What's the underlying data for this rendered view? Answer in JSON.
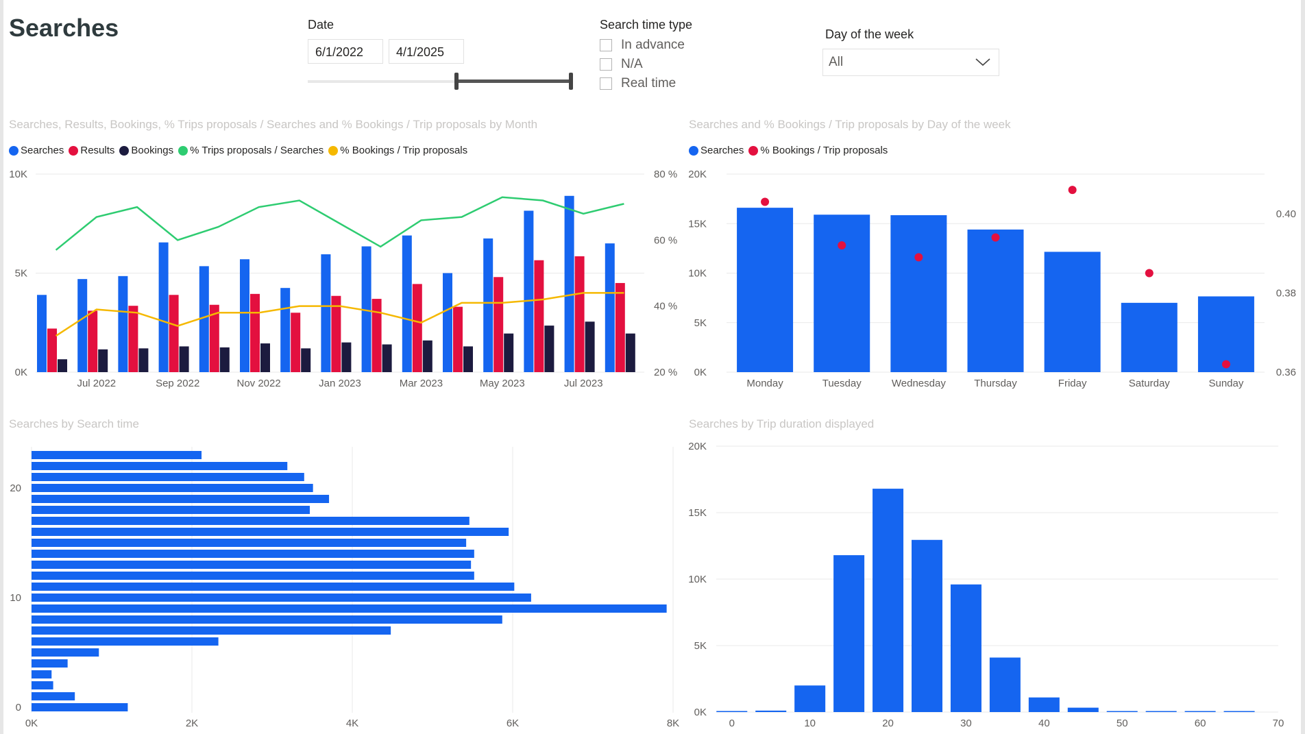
{
  "page": {
    "title": "Searches"
  },
  "colors": {
    "searches": "#1565f0",
    "results": "#e3103f",
    "bookings": "#1c1b3f",
    "trips_pct": "#2ecc71",
    "bookings_pct": "#f5b800",
    "grid": "#e9e9e9",
    "axis_text": "#605e5c"
  },
  "filters": {
    "date": {
      "label": "Date",
      "start": "6/1/2022",
      "end": "4/1/2025"
    },
    "search_time_type": {
      "label": "Search time type",
      "options": [
        {
          "label": "In advance",
          "checked": false
        },
        {
          "label": "N/A",
          "checked": false
        },
        {
          "label": "Real time",
          "checked": false
        }
      ]
    },
    "day_of_week": {
      "label": "Day of the week",
      "value": "All",
      "icon": "chevron-down-icon"
    }
  },
  "chart_data": [
    {
      "id": "monthly",
      "type": "bar",
      "title": "Searches, Results, Bookings, % Trips proposals / Searches and % Bookings / Trip proposals by Month",
      "legend": [
        "Searches",
        "Results",
        "Bookings",
        "% Trips proposals / Searches",
        "% Bookings / Trip proposals"
      ],
      "y_ticks": [
        "0K",
        "5K",
        "10K"
      ],
      "y2_ticks": [
        "20 %",
        "40 %",
        "60 %",
        "80 %"
      ],
      "ylim": [
        0,
        10000
      ],
      "y2lim": [
        20,
        80
      ],
      "x_labels": [
        "Jul 2022",
        "Sep 2022",
        "Nov 2022",
        "Jan 2023",
        "Mar 2023",
        "May 2023",
        "Jul 2023"
      ],
      "x_label_index": [
        1,
        3,
        5,
        7,
        9,
        11,
        13
      ],
      "categories": [
        "Jun 2022",
        "Jul 2022",
        "Aug 2022",
        "Sep 2022",
        "Oct 2022",
        "Nov 2022",
        "Dec 2022",
        "Jan 2023",
        "Feb 2023",
        "Mar 2023",
        "Apr 2023",
        "May 2023",
        "Jun 2023",
        "Jul 2023",
        "Aug 2023"
      ],
      "series": [
        {
          "name": "Searches",
          "kind": "bar",
          "axis": "y",
          "values": [
            3900,
            4700,
            4850,
            6550,
            5350,
            5700,
            4250,
            5950,
            6350,
            6900,
            5000,
            6750,
            8150,
            8900,
            6500
          ]
        },
        {
          "name": "Results",
          "kind": "bar",
          "axis": "y",
          "values": [
            2200,
            3100,
            3350,
            3900,
            3400,
            3950,
            3000,
            3850,
            3700,
            4450,
            3300,
            4800,
            5650,
            5850,
            4500
          ]
        },
        {
          "name": "Bookings",
          "kind": "bar",
          "axis": "y",
          "values": [
            650,
            1150,
            1200,
            1300,
            1250,
            1450,
            1200,
            1500,
            1400,
            1600,
            1300,
            1950,
            2350,
            2550,
            1950
          ]
        },
        {
          "name": "% Trips proposals / Searches",
          "kind": "line",
          "axis": "y2",
          "values": [
            57,
            67,
            70,
            60,
            64,
            70,
            72,
            65,
            58,
            66,
            67,
            73,
            72,
            68,
            71
          ]
        },
        {
          "name": "% Bookings / Trip proposals",
          "kind": "line",
          "axis": "y2",
          "values": [
            31,
            39,
            38,
            34,
            38,
            38,
            40,
            40,
            38,
            35,
            41,
            41,
            42,
            44,
            44
          ]
        }
      ]
    },
    {
      "id": "weekday",
      "type": "bar",
      "title": "Searches and % Bookings / Trip proposals by Day of the week",
      "legend": [
        "Searches",
        "% Bookings / Trip proposals"
      ],
      "categories": [
        "Monday",
        "Tuesday",
        "Wednesday",
        "Thursday",
        "Friday",
        "Saturday",
        "Sunday"
      ],
      "y_ticks": [
        "0K",
        "5K",
        "10K",
        "15K",
        "20K"
      ],
      "y2_ticks": [
        "0.36",
        "0.38",
        "0.40"
      ],
      "ylim": [
        0,
        20000
      ],
      "y2lim": [
        0.36,
        0.41
      ],
      "series": [
        {
          "name": "Searches",
          "kind": "bar",
          "axis": "y",
          "values": [
            16600,
            15900,
            15850,
            14400,
            12150,
            7000,
            7650
          ]
        },
        {
          "name": "% Bookings / Trip proposals",
          "kind": "scatter",
          "axis": "y2",
          "values": [
            0.403,
            0.392,
            0.389,
            0.394,
            0.406,
            0.385,
            0.362
          ]
        }
      ]
    },
    {
      "id": "search_time",
      "type": "bar",
      "orientation": "horizontal",
      "title": "Searches by Search time",
      "y_ticks": [
        "0",
        "10",
        "20"
      ],
      "x_ticks": [
        "0K",
        "2K",
        "4K",
        "6K",
        "8K"
      ],
      "xlim": [
        0,
        8000
      ],
      "ylim": [
        -0.5,
        23.5
      ],
      "categories": [
        0,
        1,
        2,
        3,
        4,
        5,
        6,
        7,
        8,
        9,
        10,
        11,
        12,
        13,
        14,
        15,
        16,
        17,
        18,
        19,
        20,
        21,
        22,
        23
      ],
      "values": [
        1200,
        540,
        270,
        250,
        450,
        840,
        2330,
        4480,
        5870,
        7920,
        6230,
        6020,
        5520,
        5480,
        5520,
        5420,
        5950,
        5460,
        3470,
        3710,
        3510,
        3400,
        3190,
        2120
      ]
    },
    {
      "id": "trip_duration",
      "type": "bar",
      "title": "Searches by Trip duration displayed",
      "x_ticks": [
        "0",
        "10",
        "20",
        "30",
        "40",
        "50",
        "60",
        "70"
      ],
      "y_ticks": [
        "0K",
        "5K",
        "10K",
        "15K",
        "20K"
      ],
      "xlim": [
        -2,
        70
      ],
      "ylim": [
        0,
        20000
      ],
      "x": [
        0,
        5,
        10,
        15,
        20,
        25,
        30,
        35,
        40,
        45,
        50,
        55,
        60,
        65
      ],
      "values": [
        80,
        110,
        2000,
        11800,
        16800,
        12950,
        9600,
        4100,
        1100,
        330,
        60,
        50,
        40,
        30
      ]
    }
  ]
}
